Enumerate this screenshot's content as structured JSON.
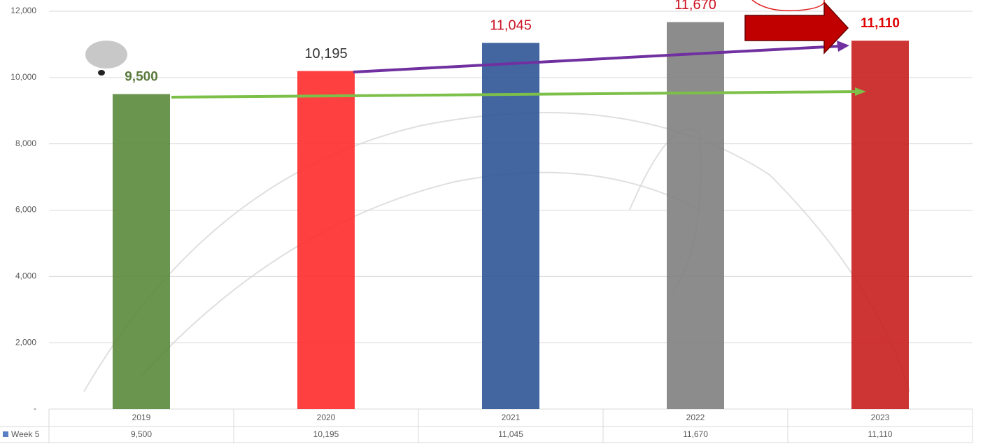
{
  "chart_data": {
    "type": "bar",
    "categories": [
      "2019",
      "2020",
      "2021",
      "2022",
      "2023"
    ],
    "series": [
      {
        "name": "Week 5",
        "color": "#5b7fc4",
        "values": [
          9500,
          10195,
          11045,
          11670,
          11110
        ],
        "value_labels": [
          "9,500",
          "10,195",
          "11,045",
          "11,670",
          "11,110"
        ]
      }
    ],
    "bar_colors": [
      "#5a8a3c",
      "#ff2b2b",
      "#2f5597",
      "#7f7f7f",
      "#c81e1e"
    ],
    "label_colors": [
      "#5a7a3c",
      "#333333",
      "#cc1122",
      "#cc1122",
      "#e00000"
    ],
    "ylim": [
      0,
      12000
    ],
    "yticks": [
      {
        "value": 0,
        "label": "-"
      },
      {
        "value": 2000,
        "label": "2,000"
      },
      {
        "value": 4000,
        "label": "4,000"
      },
      {
        "value": 6000,
        "label": "6,000"
      },
      {
        "value": 8000,
        "label": "8,000"
      },
      {
        "value": 10000,
        "label": "10,000"
      },
      {
        "value": 12000,
        "label": "12,000"
      }
    ],
    "grid": true
  }
}
